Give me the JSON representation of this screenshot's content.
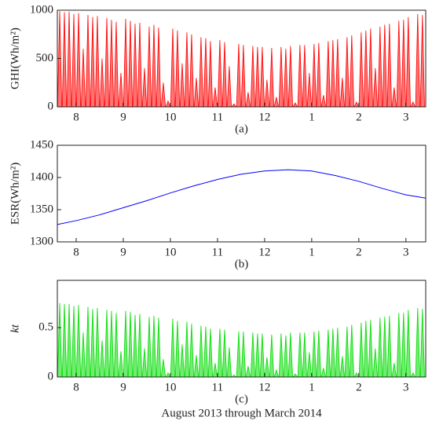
{
  "chart_data": [
    {
      "type": "spike",
      "ylabel": "GHI(Wh/m²)",
      "caption": "(a)",
      "color": "#ff0000",
      "x": [
        7.65,
        7.75,
        7.85,
        7.95,
        8.05,
        8.15,
        8.25,
        8.35,
        8.45,
        8.55,
        8.65,
        8.75,
        8.85,
        8.95,
        9.05,
        9.15,
        9.25,
        9.35,
        9.45,
        9.55,
        9.65,
        9.75,
        9.85,
        9.95,
        10.05,
        10.15,
        10.25,
        10.35,
        10.45,
        10.55,
        10.65,
        10.75,
        10.85,
        10.95,
        11.05,
        11.15,
        11.25,
        11.35,
        11.45,
        11.55,
        11.65,
        11.75,
        11.85,
        11.95,
        12.05,
        12.15,
        12.25,
        12.35,
        12.45,
        12.55,
        12.65,
        12.75,
        12.85,
        12.95,
        13.05,
        13.15,
        13.25,
        13.35,
        13.45,
        13.55,
        13.65,
        13.75,
        13.85,
        13.95,
        14.05,
        14.15,
        14.25,
        14.35,
        14.45,
        14.55,
        14.65,
        14.75,
        14.85,
        14.95,
        15.05,
        15.15,
        15.25,
        15.35
      ],
      "values": [
        990,
        980,
        985,
        960,
        970,
        600,
        950,
        930,
        940,
        500,
        920,
        900,
        880,
        350,
        910,
        890,
        860,
        870,
        400,
        830,
        850,
        820,
        250,
        60,
        810,
        790,
        450,
        770,
        750,
        300,
        720,
        710,
        680,
        200,
        690,
        670,
        420,
        30,
        650,
        640,
        150,
        630,
        620,
        620,
        280,
        610,
        100,
        620,
        600,
        630,
        40,
        640,
        640,
        350,
        650,
        660,
        120,
        680,
        690,
        700,
        300,
        720,
        740,
        50,
        770,
        790,
        810,
        400,
        830,
        850,
        860,
        200,
        890,
        900,
        930,
        50,
        960,
        950
      ],
      "xlim": [
        7.6,
        15.42
      ],
      "xticks": [
        8,
        9,
        10,
        11,
        12,
        {
          "value": 13,
          "label": "1"
        },
        {
          "value": 14,
          "label": "2"
        },
        {
          "value": 15,
          "label": "3"
        }
      ],
      "ylim": [
        0,
        1000
      ],
      "yticks": [
        0,
        500,
        1000
      ]
    },
    {
      "type": "line",
      "ylabel": "ESR(Wh/m²)",
      "caption": "(b)",
      "color": "#0000ff",
      "x": [
        7.6,
        8,
        8.5,
        9,
        9.5,
        10,
        10.5,
        11,
        11.5,
        12,
        12.5,
        13,
        13.5,
        14,
        14.5,
        15,
        15.42
      ],
      "values": [
        1327,
        1333,
        1342,
        1353,
        1364,
        1376,
        1387,
        1397,
        1405,
        1410,
        1412,
        1410,
        1403,
        1394,
        1383,
        1373,
        1368
      ],
      "xlim": [
        7.6,
        15.42
      ],
      "xticks": [
        8,
        9,
        10,
        11,
        12,
        {
          "value": 13,
          "label": "1"
        },
        {
          "value": 14,
          "label": "2"
        },
        {
          "value": 15,
          "label": "3"
        }
      ],
      "ylim": [
        1300,
        1450
      ],
      "yticks": [
        1300,
        1350,
        1400,
        1450
      ]
    },
    {
      "type": "spike",
      "ylabel": "kt",
      "caption": "(c)",
      "xlabel": "August 2013 through March 2014",
      "color": "#00dd00",
      "x": [
        7.65,
        7.75,
        7.85,
        7.95,
        8.05,
        8.15,
        8.25,
        8.35,
        8.45,
        8.55,
        8.65,
        8.75,
        8.85,
        8.95,
        9.05,
        9.15,
        9.25,
        9.35,
        9.45,
        9.55,
        9.65,
        9.75,
        9.85,
        9.95,
        10.05,
        10.15,
        10.25,
        10.35,
        10.45,
        10.55,
        10.65,
        10.75,
        10.85,
        10.95,
        11.05,
        11.15,
        11.25,
        11.35,
        11.45,
        11.55,
        11.65,
        11.75,
        11.85,
        11.95,
        12.05,
        12.15,
        12.25,
        12.35,
        12.45,
        12.55,
        12.65,
        12.75,
        12.85,
        12.95,
        13.05,
        13.15,
        13.25,
        13.35,
        13.45,
        13.55,
        13.65,
        13.75,
        13.85,
        13.95,
        14.05,
        14.15,
        14.25,
        14.35,
        14.45,
        14.55,
        14.65,
        14.75,
        14.85,
        14.95,
        15.05,
        15.15,
        15.25,
        15.35
      ],
      "values": [
        0.75,
        0.74,
        0.74,
        0.72,
        0.73,
        0.45,
        0.71,
        0.69,
        0.7,
        0.37,
        0.68,
        0.67,
        0.65,
        0.26,
        0.67,
        0.66,
        0.63,
        0.64,
        0.29,
        0.61,
        0.62,
        0.6,
        0.18,
        0.04,
        0.59,
        0.57,
        0.33,
        0.56,
        0.54,
        0.22,
        0.52,
        0.51,
        0.49,
        0.14,
        0.49,
        0.48,
        0.3,
        0.02,
        0.46,
        0.46,
        0.11,
        0.45,
        0.44,
        0.44,
        0.2,
        0.43,
        0.07,
        0.44,
        0.42,
        0.45,
        0.03,
        0.45,
        0.45,
        0.25,
        0.46,
        0.47,
        0.09,
        0.48,
        0.49,
        0.5,
        0.21,
        0.51,
        0.53,
        0.04,
        0.55,
        0.57,
        0.58,
        0.29,
        0.6,
        0.61,
        0.62,
        0.14,
        0.65,
        0.65,
        0.68,
        0.04,
        0.7,
        0.69
      ],
      "xlim": [
        7.6,
        15.42
      ],
      "xticks": [
        8,
        9,
        10,
        11,
        12,
        {
          "value": 13,
          "label": "1"
        },
        {
          "value": 14,
          "label": "2"
        },
        {
          "value": 15,
          "label": "3"
        }
      ],
      "ylim": [
        0,
        0.98
      ],
      "yticks": [
        0,
        0.5
      ]
    }
  ]
}
